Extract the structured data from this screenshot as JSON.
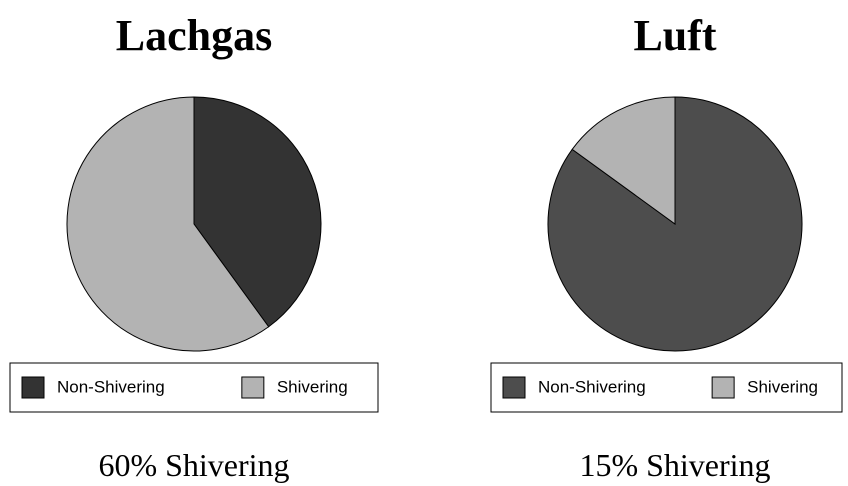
{
  "chart_data": [
    {
      "type": "pie",
      "title": "Lachgas",
      "categories": [
        "Non-Shivering",
        "Shivering"
      ],
      "values": [
        40,
        60
      ],
      "colors": [
        "#333333",
        "#b3b3b3"
      ],
      "annotation": "60% Shivering"
    },
    {
      "type": "pie",
      "title": "Luft",
      "categories": [
        "Non-Shivering",
        "Shivering"
      ],
      "values": [
        85,
        15
      ],
      "colors": [
        "#4d4d4d",
        "#b3b3b3"
      ],
      "annotation": "15% Shivering"
    }
  ]
}
